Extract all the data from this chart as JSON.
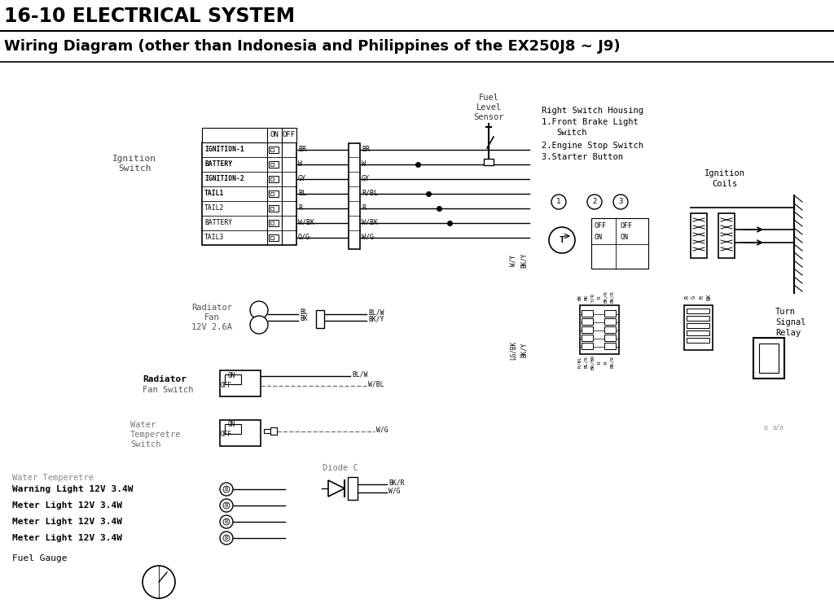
{
  "title1": "16-10 ELECTRICAL SYSTEM",
  "title2": "Wiring Diagram (other than Indonesia and Philippines of the EX250J8 ∼ J9)",
  "ignition_switch_rows": [
    "IGNITION-1",
    "BATTERY",
    "IGNITION-2",
    "TAIL1",
    "TAIL2",
    "BATTERY",
    "TAIL3"
  ],
  "ignition_wires_left": [
    "BR",
    "W",
    "GY",
    "BL",
    "R",
    "W/BK",
    "O/G"
  ],
  "ignition_wires_right": [
    "BR",
    "W",
    "GY",
    "R/BL",
    "R",
    "W/BK",
    "W/G"
  ],
  "row_bold": [
    true,
    true,
    true,
    true,
    false,
    false,
    false
  ],
  "bottom_labels": [
    "Water Temperetre",
    "Warning Light 12V 3.4W",
    "Meter Light 12V 3.4W",
    "Meter Light 12V 3.4W",
    "Meter Light 12V 3.4W"
  ],
  "right_switch_text": [
    "Right Switch Housing",
    "1.Front Brake Light",
    "   Switch",
    "",
    "2.Engine Stop Switch",
    "3.Starter Button"
  ]
}
